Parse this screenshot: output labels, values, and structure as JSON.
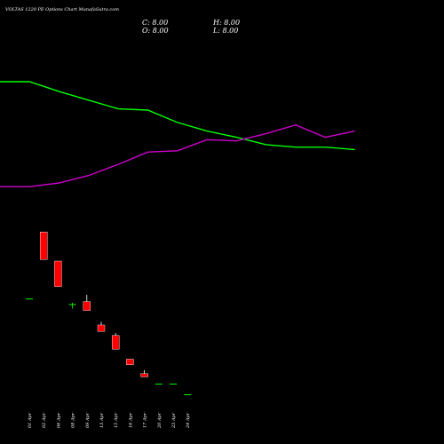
{
  "header": {
    "title": "VOLTAS 1220  PE Options  Chart MunafaSutra.com",
    "close_text": "C: 8.00",
    "high_text": "H: 8.00",
    "open_text": "O: 8.00",
    "low_text": "L: 8.00"
  },
  "colors": {
    "background": "#000000",
    "up": "#00ff00",
    "down": "#ff0000",
    "ma_fast": "#00ff00",
    "ma_slow": "#cc00cc",
    "text": "#ffffff"
  },
  "chart_data": {
    "type": "candlestick",
    "x": [
      "01 Apr",
      "02 Apr",
      "06 Apr",
      "08 Apr",
      "09 Apr",
      "13 Apr",
      "15 Apr",
      "16 Apr",
      "17 Apr",
      "20 Apr",
      "23 Apr",
      "24 Apr"
    ],
    "candles": [
      {
        "o": 61.9,
        "h": 61.9,
        "l": 61.9,
        "c": 61.9
      },
      {
        "o": 99.4,
        "h": 99.4,
        "l": 83.9,
        "c": 83.9
      },
      {
        "o": 83.0,
        "h": 83.0,
        "l": 68.6,
        "c": 68.6
      },
      {
        "o": 58.8,
        "h": 59.5,
        "l": 56.2,
        "c": 58.8
      },
      {
        "o": 60.2,
        "h": 64.0,
        "l": 55.2,
        "c": 55.2
      },
      {
        "o": 47.0,
        "h": 48.8,
        "l": 43.4,
        "c": 43.4
      },
      {
        "o": 41.1,
        "h": 42.4,
        "l": 33.4,
        "c": 33.4
      },
      {
        "o": 27.8,
        "h": 27.8,
        "l": 24.6,
        "c": 24.6
      },
      {
        "o": 19.6,
        "h": 21.6,
        "l": 17.8,
        "c": 17.8
      },
      {
        "o": 14.0,
        "h": 14.0,
        "l": 14.0,
        "c": 14.0
      },
      {
        "o": 14.0,
        "h": 14.0,
        "l": 14.0,
        "c": 14.0
      },
      {
        "o": 8.0,
        "h": 8.0,
        "l": 8.0,
        "c": 8.0
      }
    ],
    "moving_averages": [
      {
        "color": "green",
        "values": [
          null,
          null,
          null,
          null,
          null,
          null,
          null,
          null,
          null,
          null,
          null,
          null,
          null
        ]
      },
      {
        "color": "magenta",
        "values": [
          null,
          null,
          null,
          null,
          null,
          null,
          null,
          null,
          null,
          null,
          null,
          null,
          null
        ]
      }
    ],
    "ma_green_levels": [
      100,
      100,
      92,
      85,
      78,
      77,
      67,
      60,
      55,
      49,
      47,
      47,
      45
    ],
    "ma_magenta_levels": [
      15,
      15,
      18,
      24,
      33,
      43,
      44,
      53,
      52,
      58,
      65,
      55,
      60
    ],
    "ylim": [
      0,
      105
    ],
    "grid": false,
    "legend": false
  }
}
